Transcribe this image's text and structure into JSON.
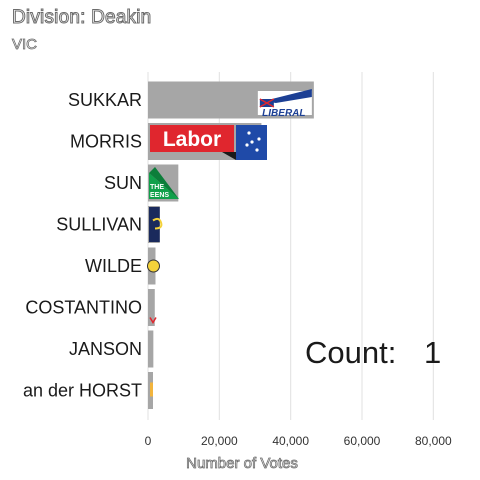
{
  "header": {
    "title": "Division: Deakin",
    "subtitle": "VIC"
  },
  "counter": {
    "label": "Count:",
    "value": "1"
  },
  "chart_data": {
    "type": "bar",
    "orientation": "horizontal",
    "categories": [
      "SUKKAR",
      "MORRIS",
      "SUN",
      "SULLIVAN",
      "WILDE",
      "COSTANTINO",
      "JANSON",
      "an der HORST"
    ],
    "values": [
      46500,
      31800,
      8500,
      3300,
      2100,
      1900,
      1500,
      1400
    ],
    "xlabel": "Number of Votes",
    "xlim": [
      0,
      90000
    ],
    "xticks": [
      0,
      20000,
      40000,
      60000,
      80000
    ],
    "xtick_labels": [
      "0",
      "20,000",
      "40,000",
      "60,000",
      "80,000"
    ],
    "grid": true,
    "bar_color": "#a6a6a6",
    "party_logos": [
      {
        "category": "SUKKAR",
        "icon": "liberal-logo-icon",
        "text": "LIBERAL",
        "color": "#1c3f94"
      },
      {
        "category": "MORRIS",
        "icon": "labor-logo-icon",
        "text": "Labor",
        "color": "#e0262e"
      },
      {
        "category": "SUN",
        "icon": "greens-logo-icon",
        "text": "THE GREENS",
        "color": "#10a04a"
      },
      {
        "category": "SULLIVAN",
        "icon": "party-logo-icon",
        "color": "#1a2a5c"
      },
      {
        "category": "WILDE",
        "icon": "party-logo-icon",
        "color": "#f4d23a"
      },
      {
        "category": "COSTANTINO",
        "icon": "party-logo-icon",
        "color": "#e0262e"
      },
      {
        "category": "an der HORST",
        "icon": "party-logo-icon",
        "color": "#f2b43c"
      }
    ]
  }
}
